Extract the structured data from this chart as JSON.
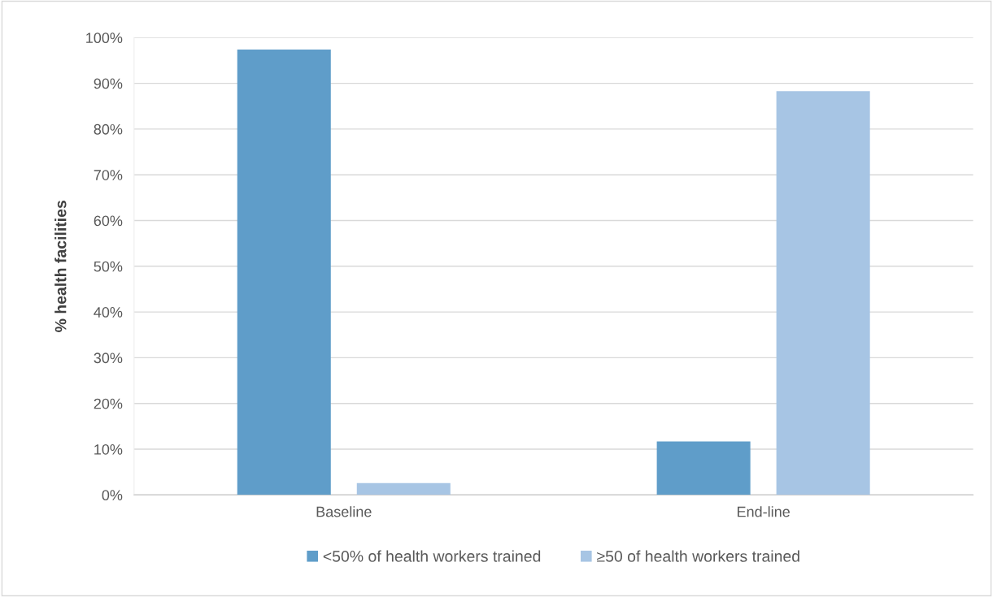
{
  "chart_data": {
    "type": "bar",
    "ylabel": "% health facilities",
    "categories": [
      "Baseline",
      "End-line"
    ],
    "series": [
      {
        "name": "<50% of health workers trained",
        "color": "#5f9dc9",
        "values": [
          97.4,
          11.7
        ]
      },
      {
        "name": "≥50 of health workers trained",
        "color": "#a7c5e4",
        "values": [
          2.6,
          88.3
        ]
      }
    ],
    "ylim": [
      0,
      100
    ],
    "yticks": [
      {
        "value": 0,
        "label": "0%"
      },
      {
        "value": 10,
        "label": "10%"
      },
      {
        "value": 20,
        "label": "20%"
      },
      {
        "value": 30,
        "label": "30%"
      },
      {
        "value": 40,
        "label": "40%"
      },
      {
        "value": 50,
        "label": "50%"
      },
      {
        "value": 60,
        "label": "60%"
      },
      {
        "value": 70,
        "label": "70%"
      },
      {
        "value": 80,
        "label": "80%"
      },
      {
        "value": 90,
        "label": "90%"
      },
      {
        "value": 100,
        "label": "100%"
      }
    ],
    "grid": "y",
    "legend": "bottom"
  }
}
